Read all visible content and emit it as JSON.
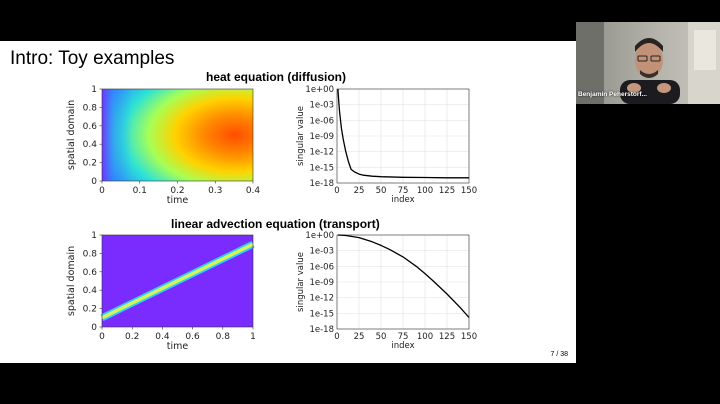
{
  "slide": {
    "title": "Intro: Toy examples",
    "page_label": "7 / 38",
    "sections": [
      {
        "title": "heat equation (diffusion)"
      },
      {
        "title": "linear advection equation (transport)"
      }
    ]
  },
  "chart_data": [
    {
      "type": "heatmap",
      "title": "",
      "xlabel": "time",
      "ylabel": "spatial domain",
      "xlim": [
        0,
        0.4
      ],
      "ylim": [
        0,
        1
      ],
      "xticks": [
        "0",
        "0.1",
        "0.2",
        "0.3",
        "0.4"
      ],
      "yticks": [
        "0",
        "0.2",
        "0.4",
        "0.6",
        "0.8",
        "1"
      ],
      "description_colors": [
        "#00d0ff",
        "#7fff7a",
        "#ffcc00",
        "#ff5a00"
      ]
    },
    {
      "type": "line",
      "title": "",
      "xlabel": "index",
      "ylabel": "singular value",
      "scale_y": "log",
      "xlim": [
        0,
        150
      ],
      "ylim_exp": [
        -18,
        0
      ],
      "xticks": [
        "0",
        "25",
        "50",
        "75",
        "100",
        "125",
        "150"
      ],
      "yticks": [
        "1e+00",
        "1e-03",
        "1e-06",
        "1e-09",
        "1e-12",
        "1e-15",
        "1e-18"
      ],
      "grid": true,
      "x": [
        1,
        2,
        3,
        5,
        7,
        10,
        13,
        16,
        20,
        25,
        30,
        40,
        50,
        75,
        100,
        125,
        150
      ],
      "log10_y": [
        0,
        -2.5,
        -4.4,
        -7.5,
        -9.6,
        -12.0,
        -13.9,
        -15.4,
        -15.9,
        -16.3,
        -16.5,
        -16.7,
        -16.8,
        -16.9,
        -16.95,
        -17.0,
        -17.0
      ]
    },
    {
      "type": "heatmap",
      "title": "",
      "xlabel": "time",
      "ylabel": "spatial domain",
      "xlim": [
        0,
        1
      ],
      "ylim": [
        0,
        1
      ],
      "xticks": [
        "0",
        "0.2",
        "0.4",
        "0.6",
        "0.8",
        "1"
      ],
      "yticks": [
        "0",
        "0.2",
        "0.4",
        "0.6",
        "0.8",
        "1"
      ],
      "line_start": [
        0,
        0.1
      ],
      "line_end": [
        1,
        0.9
      ]
    },
    {
      "type": "line",
      "title": "",
      "xlabel": "index",
      "ylabel": "singular value",
      "scale_y": "log",
      "xlim": [
        0,
        150
      ],
      "ylim_exp": [
        -18,
        0
      ],
      "xticks": [
        "0",
        "25",
        "50",
        "75",
        "100",
        "125",
        "150"
      ],
      "yticks": [
        "1e+00",
        "1e-03",
        "1e-06",
        "1e-09",
        "1e-12",
        "1e-15",
        "1e-18"
      ],
      "grid": true,
      "x": [
        1,
        10,
        25,
        40,
        50,
        60,
        75,
        90,
        100,
        110,
        125,
        140,
        150
      ],
      "log10_y": [
        0,
        -0.1,
        -0.5,
        -1.3,
        -2.0,
        -2.8,
        -4.2,
        -6.0,
        -7.4,
        -8.9,
        -11.3,
        -13.9,
        -15.8
      ]
    }
  ],
  "video": {
    "participant_name": "Benjamin Peherstorf..."
  }
}
